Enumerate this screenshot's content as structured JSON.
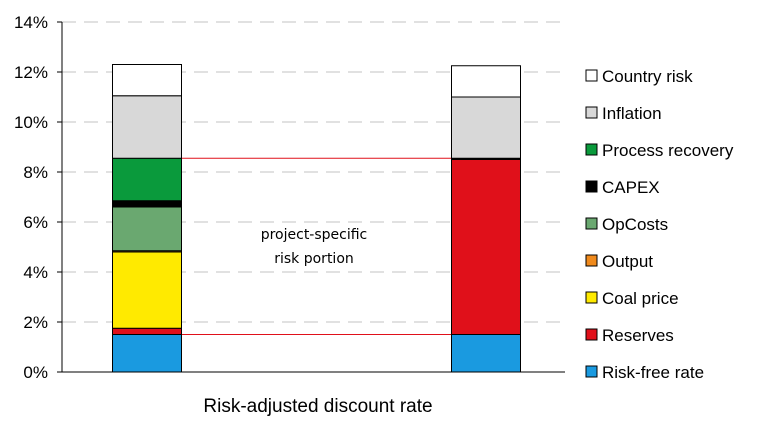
{
  "chart_data": {
    "type": "bar",
    "stacked": true,
    "xlabel": "Risk-adjusted discount rate",
    "ylim": [
      0,
      14
    ],
    "yticks": [
      "0%",
      "2%",
      "4%",
      "6%",
      "8%",
      "10%",
      "12%",
      "14%"
    ],
    "grid": true,
    "legend_position": "right",
    "annotation": [
      "project-specific",
      "risk portion"
    ],
    "series": [
      {
        "name": "Risk-free rate",
        "color": "#1a9ae0",
        "values": [
          1.5,
          1.5
        ]
      },
      {
        "name": "Reserves",
        "color": "#e0101a",
        "values": [
          0.25,
          7.0
        ]
      },
      {
        "name": "Coal price",
        "color": "#ffea00",
        "values": [
          3.05,
          0.0
        ]
      },
      {
        "name": "Output",
        "color": "#f08a1c",
        "values": [
          0.05,
          0.0
        ]
      },
      {
        "name": "OpCosts",
        "color": "#6aa870",
        "values": [
          1.75,
          0.0
        ]
      },
      {
        "name": "CAPEX",
        "color": "#000000",
        "values": [
          0.25,
          0.05
        ]
      },
      {
        "name": "Process recovery",
        "color": "#0a9a3c",
        "values": [
          1.7,
          0.0
        ]
      },
      {
        "name": "Inflation",
        "color": "#d8d8d8",
        "values": [
          2.5,
          2.45
        ]
      },
      {
        "name": "Country risk",
        "color": "#ffffff",
        "values": [
          1.25,
          1.25
        ]
      }
    ]
  }
}
